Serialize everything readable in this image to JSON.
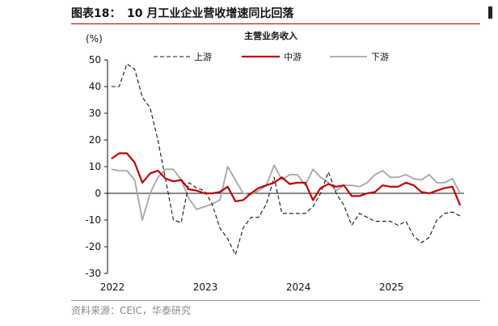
{
  "figure": {
    "label": "图表18：",
    "title": "10 月工业企业营收增速同比回落",
    "source": "资料来源：CEIC，华泰研究"
  },
  "colors": {
    "upstream": "#111111",
    "midstream": "#c00000",
    "downstream": "#a6a6a6",
    "rule": "#b00000"
  },
  "chart_data": {
    "type": "line",
    "title": "主营业务收入",
    "unit": "(%)",
    "ylim": [
      -30,
      50
    ],
    "yticks": [
      50,
      40,
      30,
      20,
      10,
      0,
      -10,
      -20,
      -30
    ],
    "xticks": [
      "2022",
      "2023",
      "2024",
      "2025"
    ],
    "legend_position": "top",
    "grid": false,
    "x": [
      "2022-01",
      "2022-02",
      "2022-03",
      "2022-04",
      "2022-05",
      "2022-06",
      "2022-07",
      "2022-08",
      "2022-09",
      "2022-10",
      "2022-11",
      "2022-12",
      "2023-01",
      "2023-02",
      "2023-03",
      "2023-04",
      "2023-05",
      "2023-06",
      "2023-07",
      "2023-08",
      "2023-09",
      "2023-10",
      "2023-11",
      "2023-12",
      "2024-01",
      "2024-02",
      "2024-03",
      "2024-04",
      "2024-05",
      "2024-06",
      "2024-07",
      "2024-08",
      "2024-09",
      "2024-10",
      "2024-11",
      "2024-12",
      "2025-01",
      "2025-02",
      "2025-03",
      "2025-04",
      "2025-05",
      "2025-06",
      "2025-07",
      "2025-08",
      "2025-09",
      "2025-10"
    ],
    "series": [
      {
        "name": "上游",
        "style": "dashed",
        "values": [
          40,
          40,
          48.5,
          46.5,
          36,
          32,
          20,
          5,
          -10,
          -11,
          4,
          2,
          1,
          -4,
          -13,
          -17,
          -23,
          -13,
          -9,
          -9,
          -4,
          6,
          -7.5,
          -7.5,
          -7.5,
          -7.5,
          -5,
          0,
          8,
          0,
          -4.5,
          -12,
          -7.5,
          -9,
          -10.5,
          -10.5,
          -10.5,
          -12,
          -10.5,
          -16,
          -18.5,
          -16.5,
          -10,
          -7.5,
          -7,
          -8.5
        ]
      },
      {
        "name": "中游",
        "style": "solid",
        "values": [
          13,
          15,
          15,
          11.5,
          4,
          7.5,
          8.5,
          5.5,
          4.5,
          5,
          1.5,
          1,
          0,
          0,
          0.5,
          2.5,
          -3,
          -2.5,
          0,
          2,
          3,
          4,
          6,
          3.5,
          4,
          4,
          -2.5,
          2,
          3.5,
          2.5,
          3,
          -1,
          -1,
          0,
          0.5,
          3,
          2.5,
          2.5,
          4,
          3,
          0.5,
          0,
          1,
          2,
          2.5,
          -4.5
        ]
      },
      {
        "name": "下游",
        "style": "solid",
        "values": [
          9,
          8.5,
          8.5,
          5,
          -10,
          0,
          6,
          9,
          9,
          5,
          -2,
          -6,
          -5,
          -4,
          -2.5,
          10,
          5,
          0,
          -0.5,
          1,
          3,
          10.5,
          5,
          7,
          7,
          3,
          9,
          6,
          4,
          1,
          3,
          3,
          2.5,
          4,
          7,
          8.5,
          6,
          6,
          7,
          5.5,
          5,
          7,
          4,
          4,
          5.5,
          0
        ]
      }
    ]
  }
}
